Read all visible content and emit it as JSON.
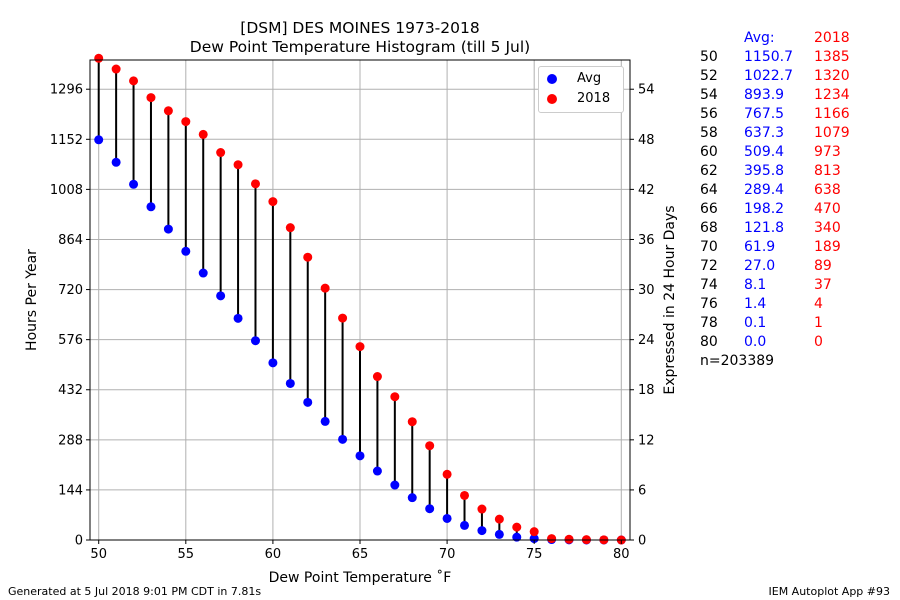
{
  "title_line1": "[DSM] DES MOINES 1973-2018",
  "title_line2": "Dew Point Temperature Histogram (till 5 Jul)",
  "footer_left": "Generated at 5 Jul 2018 9:01 PM CDT in 7.81s",
  "footer_right": "IEM Autoplot App #93",
  "table": {
    "header_avg": "Avg:",
    "header_2018": "2018",
    "rows": [
      {
        "t": "50",
        "avg": "1150.7",
        "y2018": "1385"
      },
      {
        "t": "52",
        "avg": "1022.7",
        "y2018": "1320"
      },
      {
        "t": "54",
        "avg": "893.9",
        "y2018": "1234"
      },
      {
        "t": "56",
        "avg": "767.5",
        "y2018": "1166"
      },
      {
        "t": "58",
        "avg": "637.3",
        "y2018": "1079"
      },
      {
        "t": "60",
        "avg": "509.4",
        "y2018": "973"
      },
      {
        "t": "62",
        "avg": "395.8",
        "y2018": "813"
      },
      {
        "t": "64",
        "avg": "289.4",
        "y2018": "638"
      },
      {
        "t": "66",
        "avg": "198.2",
        "y2018": "470"
      },
      {
        "t": "68",
        "avg": "121.8",
        "y2018": "340"
      },
      {
        "t": "70",
        "avg": "61.9",
        "y2018": "189"
      },
      {
        "t": "72",
        "avg": "27.0",
        "y2018": "89"
      },
      {
        "t": "74",
        "avg": "8.1",
        "y2018": "37"
      },
      {
        "t": "76",
        "avg": "1.4",
        "y2018": "4"
      },
      {
        "t": "78",
        "avg": "0.1",
        "y2018": "1"
      },
      {
        "t": "80",
        "avg": "0.0",
        "y2018": "0"
      }
    ],
    "n_label": "n=203389"
  },
  "colors": {
    "avg": "#0000ff",
    "y2018": "#ff0000",
    "stem": "#000000",
    "grid": "#b0b0b0"
  },
  "chart_data": {
    "type": "scatter",
    "xlabel": "Dew Point Temperature ˚F",
    "ylabel": "Hours Per Year",
    "y2label": "Expressed in 24 Hour Days",
    "xlim": [
      49.5,
      80.5
    ],
    "ylim": [
      0,
      1380
    ],
    "y2lim": [
      0,
      57.5
    ],
    "xticks": [
      50,
      55,
      60,
      65,
      70,
      75,
      80
    ],
    "yticks": [
      0,
      144,
      288,
      432,
      576,
      720,
      864,
      1008,
      1152,
      1296
    ],
    "y2ticks": [
      0,
      6,
      12,
      18,
      24,
      30,
      36,
      42,
      48,
      54
    ],
    "grid": true,
    "legend_position": "top-right",
    "x": [
      50,
      51,
      52,
      53,
      54,
      55,
      56,
      57,
      58,
      59,
      60,
      61,
      62,
      63,
      64,
      65,
      66,
      67,
      68,
      69,
      70,
      71,
      72,
      73,
      74,
      75,
      76,
      77,
      78,
      79,
      80
    ],
    "series": [
      {
        "name": "Avg",
        "values": [
          1150.7,
          1086,
          1022.7,
          958,
          893.9,
          830,
          767.5,
          702,
          637.3,
          573,
          509.4,
          450,
          395.8,
          341,
          289.4,
          242,
          198.2,
          158,
          121.8,
          90,
          61.9,
          42,
          27.0,
          16,
          8.1,
          4,
          1.4,
          0.5,
          0.1,
          0.03,
          0.0
        ]
      },
      {
        "name": "2018",
        "values": [
          1385,
          1354,
          1320,
          1272,
          1234,
          1203,
          1166,
          1114,
          1079,
          1024,
          973,
          898,
          813,
          724,
          638,
          556,
          470,
          412,
          340,
          271,
          189,
          128,
          89,
          60,
          37,
          24,
          4,
          2,
          1,
          0.5,
          0
        ]
      }
    ]
  }
}
